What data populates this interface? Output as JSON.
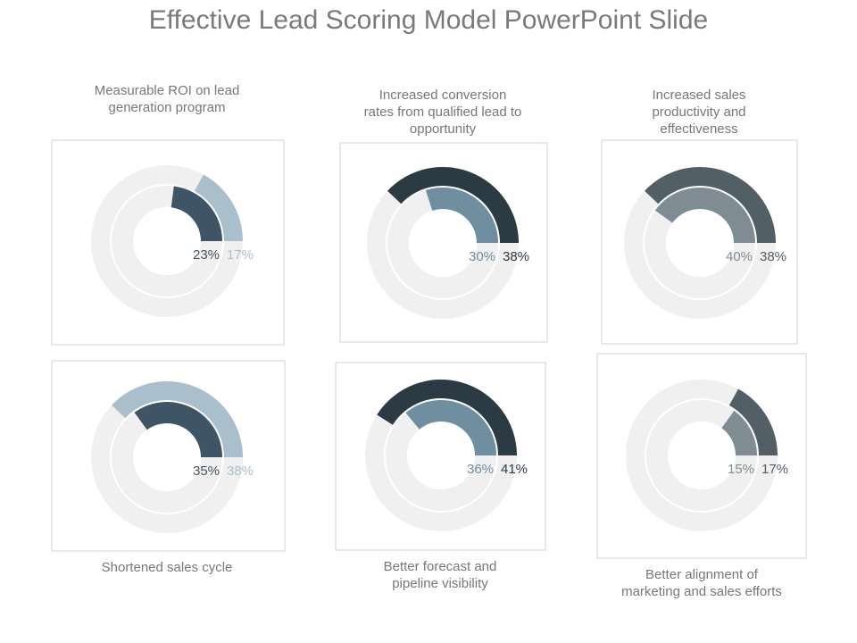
{
  "title": "Effective Lead Scoring Model PowerPoint Slide",
  "chart_data": [
    {
      "type": "donut",
      "title": "Measurable ROI on lead generation program",
      "values": [
        23,
        17
      ],
      "value_labels": [
        "23%",
        "17%"
      ],
      "colors": [
        "#3e5566",
        "#a9c0cc"
      ]
    },
    {
      "type": "donut",
      "title": "Increased conversion rates from qualified lead to opportunity",
      "values": [
        30,
        38
      ],
      "value_labels": [
        "30%",
        "38%"
      ],
      "colors": [
        "#6f8fa1",
        "#2c3a44"
      ]
    },
    {
      "type": "donut",
      "title": "Increased sales productivity and effectiveness",
      "values": [
        40,
        38
      ],
      "value_labels": [
        "40%",
        "38%"
      ],
      "colors": [
        "#7f8c94",
        "#535f66"
      ]
    },
    {
      "type": "donut",
      "title": "Shortened sales cycle",
      "values": [
        35,
        38
      ],
      "value_labels": [
        "35%",
        "38%"
      ],
      "colors": [
        "#3e5566",
        "#a9c0cc"
      ]
    },
    {
      "type": "donut",
      "title": "Better forecast and pipeline visibility",
      "values": [
        36,
        41
      ],
      "value_labels": [
        "36%",
        "41%"
      ],
      "colors": [
        "#6f8fa1",
        "#2c3a44"
      ]
    },
    {
      "type": "donut",
      "title": "Better alignment of marketing and sales efforts",
      "values": [
        15,
        17
      ],
      "value_labels": [
        "15%",
        "17%"
      ],
      "colors": [
        "#7f8c94",
        "#535f66"
      ]
    }
  ]
}
